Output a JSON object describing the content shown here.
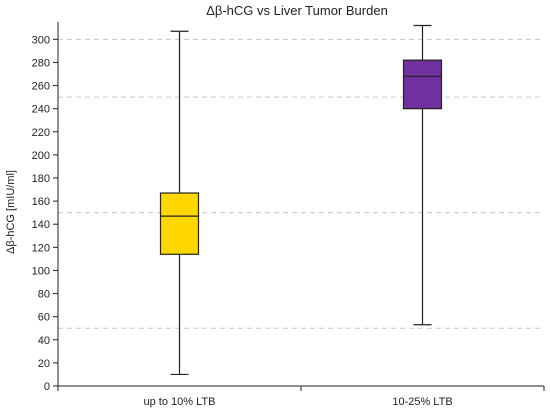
{
  "chart_data": {
    "type": "box",
    "title": "Δβ-hCG vs Liver Tumor Burden",
    "xlabel": "",
    "ylabel": "Δβ-hCG [mIU/ml]",
    "ylim": [
      0,
      315
    ],
    "yticks": [
      0,
      20,
      40,
      60,
      80,
      100,
      120,
      140,
      160,
      180,
      200,
      220,
      240,
      260,
      280,
      300
    ],
    "gridlines": [
      50,
      150,
      250,
      300
    ],
    "grid": "dashed horizontal",
    "categories": [
      "up to 10% LTB",
      "10-25% LTB"
    ],
    "boxes": [
      {
        "category": "up to 10% LTB",
        "min": 10,
        "q1": 114,
        "median": 147,
        "q3": 167,
        "max": 307,
        "color": "#FFD700"
      },
      {
        "category": "10-25% LTB",
        "min": 53,
        "q1": 240,
        "median": 268,
        "q3": 282,
        "max": 312,
        "color": "#7030A0"
      }
    ]
  }
}
